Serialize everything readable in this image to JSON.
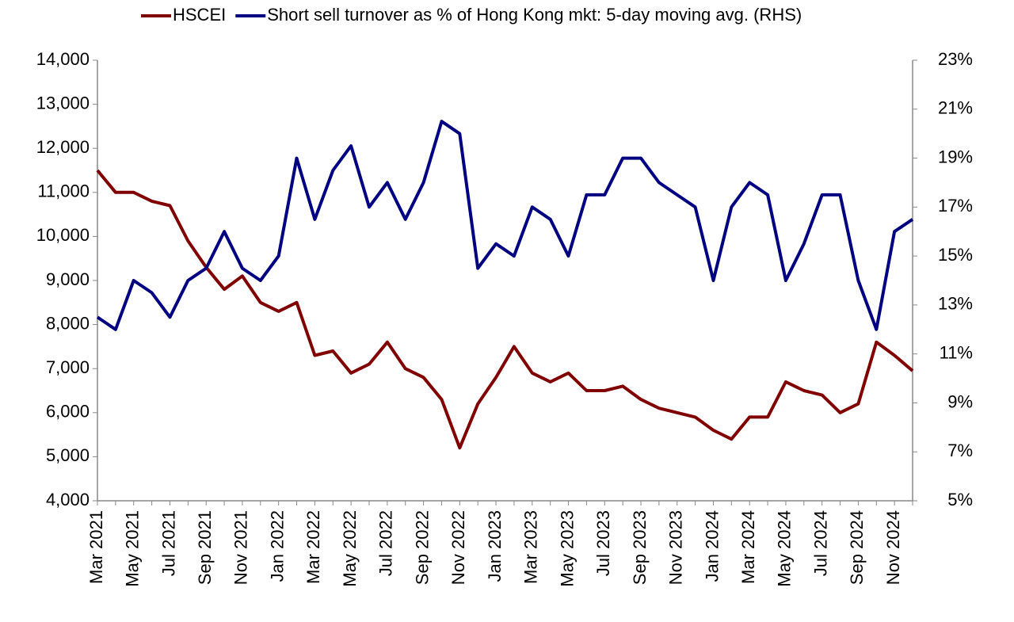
{
  "chart_data": {
    "type": "line",
    "categories": [
      "Mar 2021",
      null,
      "May 2021",
      null,
      "Jul 2021",
      null,
      "Sep 2021",
      null,
      "Nov 2021",
      null,
      "Jan 2022",
      null,
      "Mar 2022",
      null,
      "May 2022",
      null,
      "Jul 2022",
      null,
      "Sep 2022",
      null,
      "Nov 2022",
      null,
      "Jan 2023",
      null,
      "Mar 2023",
      null,
      "May 2023",
      null,
      "Jul 2023",
      null,
      "Sep 2023",
      null,
      "Nov 2023",
      null,
      "Jan 2024",
      null,
      "Mar 2024",
      null,
      "May 2024",
      null,
      "Jul 2024",
      null,
      "Sep 2024",
      null,
      "Nov 2024",
      null
    ],
    "series": [
      {
        "name": "HSCEI",
        "color": "#800000",
        "values": [
          11500,
          11000,
          11000,
          10800,
          10700,
          9900,
          9300,
          8800,
          9100,
          8500,
          8300,
          8500,
          7300,
          7400,
          6900,
          7100,
          7600,
          7000,
          6800,
          6300,
          5200,
          6200,
          6800,
          7500,
          6900,
          6700,
          6900,
          6500,
          6500,
          6600,
          6300,
          6100,
          6000,
          5900,
          5600,
          5400,
          5900,
          5900,
          6700,
          6500,
          6400,
          6000,
          6200,
          7600,
          7300,
          6950
        ]
      },
      {
        "name": "Short sell turnover as % of Hong Kong mkt: 5-day moving avg. (RHS)",
        "color": "#000080",
        "axis": "y2",
        "values": [
          12.5,
          12,
          14,
          13.5,
          12.5,
          14,
          14.5,
          16,
          14.5,
          14,
          15,
          19,
          16.5,
          18.5,
          19.5,
          17,
          18,
          16.5,
          18,
          20.5,
          20,
          14.5,
          15.5,
          15,
          17,
          16.5,
          15,
          17.5,
          17.5,
          19,
          19,
          18,
          17.5,
          17,
          14,
          17,
          18,
          17.5,
          14,
          15.5,
          17.5,
          17.5,
          14,
          12,
          16,
          16.5
        ]
      }
    ],
    "ylim": [
      4000,
      14000
    ],
    "yticks": [
      {
        "value": 4000,
        "label": "4,000"
      },
      {
        "value": 5000,
        "label": "5,000"
      },
      {
        "value": 6000,
        "label": "6,000"
      },
      {
        "value": 7000,
        "label": "7,000"
      },
      {
        "value": 8000,
        "label": "8,000"
      },
      {
        "value": 9000,
        "label": "9,000"
      },
      {
        "value": 10000,
        "label": "10,000"
      },
      {
        "value": 11000,
        "label": "11,000"
      },
      {
        "value": 12000,
        "label": "12,000"
      },
      {
        "value": 13000,
        "label": "13,000"
      },
      {
        "value": 14000,
        "label": "14,000"
      }
    ],
    "y2lim": [
      5,
      23
    ],
    "y2ticks": [
      {
        "value": 5,
        "label": "5%"
      },
      {
        "value": 7,
        "label": "7%"
      },
      {
        "value": 9,
        "label": "9%"
      },
      {
        "value": 11,
        "label": "11%"
      },
      {
        "value": 13,
        "label": "13%"
      },
      {
        "value": 15,
        "label": "15%"
      },
      {
        "value": 17,
        "label": "17%"
      },
      {
        "value": 19,
        "label": "19%"
      },
      {
        "value": 21,
        "label": "21%"
      },
      {
        "value": 23,
        "label": "23%"
      }
    ],
    "grid": false,
    "legend": "top"
  }
}
